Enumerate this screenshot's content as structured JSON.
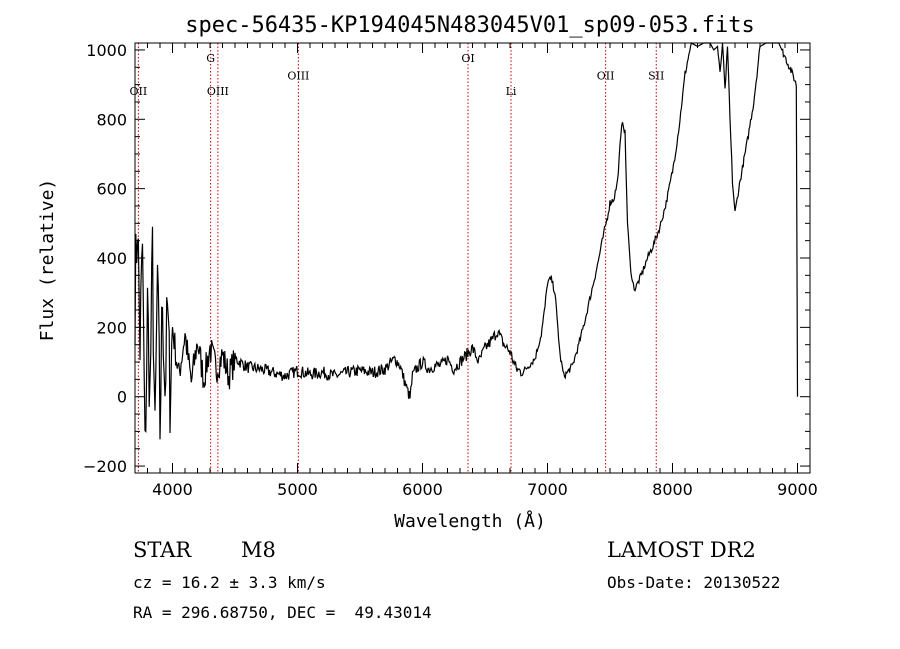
{
  "chart_data": {
    "type": "line",
    "title": "spec-56435-KP194045N483045V01_sp09-053.fits",
    "xlabel": "Wavelength (Å)",
    "ylabel": "Flux (relative)",
    "xlim": [
      3700,
      9100
    ],
    "ylim": [
      -220,
      1020
    ],
    "xticks": [
      4000,
      5000,
      6000,
      7000,
      8000,
      9000
    ],
    "xtick_labels": [
      "4000",
      "5000",
      "6000",
      "7000",
      "8000",
      "9000"
    ],
    "yticks": [
      -200,
      0,
      200,
      400,
      600,
      800,
      1000
    ],
    "ytick_labels": [
      "−200",
      "0",
      "200",
      "400",
      "600",
      "800",
      "1000"
    ],
    "grid": false,
    "spectral_lines": [
      {
        "label": "OII",
        "x": 3727,
        "label_y": 870
      },
      {
        "label": "G",
        "x": 4305,
        "label_y": 965
      },
      {
        "label": "OIII",
        "x": 4363,
        "label_y": 870
      },
      {
        "label": "OIII",
        "x": 5007,
        "label_y": 915
      },
      {
        "label": "OI",
        "x": 6364,
        "label_y": 965
      },
      {
        "label": "Li",
        "x": 6708,
        "label_y": 870
      },
      {
        "label": "OII",
        "x": 7465,
        "label_y": 915
      },
      {
        "label": "SII",
        "x": 7870,
        "label_y": 915
      }
    ],
    "series": [
      {
        "x": [
          3700,
          3720,
          3740,
          3760,
          3780,
          3800,
          3820,
          3840,
          3860,
          3880,
          3900,
          3920,
          3940,
          3960,
          3980,
          4000,
          4050,
          4100,
          4150,
          4200,
          4250,
          4300,
          4350,
          4400,
          4450,
          4500,
          4600,
          4700,
          4800,
          4900,
          5000,
          5100,
          5200,
          5300,
          5400,
          5500,
          5600,
          5700,
          5780,
          5820,
          5860,
          5900,
          5920,
          5950,
          6000,
          6050,
          6100,
          6150,
          6200,
          6250,
          6300,
          6350,
          6400,
          6450,
          6500,
          6550,
          6600,
          6650,
          6700,
          6750,
          6800,
          6850,
          6900,
          6950,
          6980,
          7000,
          7030,
          7060,
          7100,
          7130,
          7160,
          7200,
          7250,
          7300,
          7350,
          7400,
          7450,
          7480,
          7500,
          7530,
          7560,
          7580,
          7600,
          7620,
          7640,
          7660,
          7680,
          7700,
          7750,
          7800,
          7850,
          7900,
          7950,
          8000,
          8030,
          8060,
          8100,
          8150,
          8200,
          8250,
          8300,
          8330,
          8360,
          8380,
          8400,
          8420,
          8440,
          8460,
          8480,
          8500,
          8530,
          8560,
          8600,
          8650,
          8700,
          8750,
          8800,
          8850,
          8900,
          8960,
          8990,
          9000
        ],
        "values": [
          280,
          520,
          150,
          430,
          -180,
          260,
          0,
          410,
          -150,
          360,
          -90,
          300,
          20,
          250,
          10,
          200,
          60,
          180,
          40,
          160,
          50,
          140,
          80,
          120,
          60,
          110,
          85,
          80,
          70,
          60,
          75,
          65,
          70,
          60,
          70,
          75,
          70,
          80,
          110,
          90,
          40,
          -5,
          60,
          80,
          100,
          80,
          90,
          90,
          110,
          80,
          100,
          120,
          140,
          100,
          140,
          160,
          190,
          150,
          130,
          80,
          70,
          90,
          110,
          180,
          260,
          330,
          340,
          300,
          120,
          60,
          70,
          90,
          150,
          220,
          300,
          380,
          470,
          520,
          560,
          570,
          620,
          720,
          800,
          760,
          500,
          390,
          330,
          310,
          350,
          400,
          440,
          490,
          560,
          650,
          720,
          800,
          930,
          1020,
          1010,
          1020,
          1020,
          1000,
          1010,
          930,
          1020,
          880,
          1010,
          800,
          620,
          530,
          600,
          660,
          740,
          850,
          1010,
          1020,
          1020,
          1020,
          980,
          930,
          900,
          0
        ]
      }
    ]
  },
  "info": {
    "object_class": "STAR",
    "subclass": "M8",
    "survey": "LAMOST DR2",
    "cz": "cz = 16.2 ± 3.3 km/s",
    "obs_date": "Obs-Date: 20130522",
    "coords": "RA = 296.68750, DEC =  49.43014"
  }
}
